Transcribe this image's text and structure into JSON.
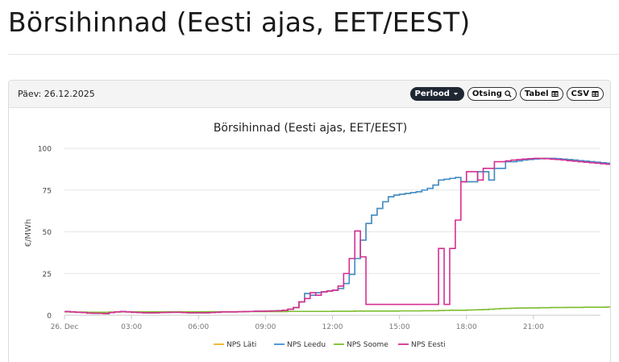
{
  "page": {
    "title": "Börsihinnad (Eesti ajas, EET/EEST)"
  },
  "panel": {
    "date_label": "Päev: 26.12.2025",
    "toolbar": {
      "period_label": "Perlood",
      "search_label": "Otsing",
      "table_label": "Tabel",
      "csv_label": "CSV"
    }
  },
  "icons": {
    "period": "chevron-down-icon",
    "search": "search-icon",
    "table": "table-icon",
    "csv": "table-icon"
  },
  "chart_data": {
    "type": "line",
    "title": "Börsihinnad (Eesti ajas, EET/EEST)",
    "xlabel": "",
    "ylabel": "€/MWh",
    "xlim": [
      0,
      24
    ],
    "ylim": [
      0,
      100
    ],
    "yticks": [
      0,
      25,
      50,
      75,
      100
    ],
    "xticks": [
      {
        "x": 0,
        "label": "26. Dec"
      },
      {
        "x": 3,
        "label": "03:00"
      },
      {
        "x": 6,
        "label": "06:00"
      },
      {
        "x": 9,
        "label": "09:00"
      },
      {
        "x": 12,
        "label": "12:00"
      },
      {
        "x": 15,
        "label": "15:00"
      },
      {
        "x": 18,
        "label": "18:00"
      },
      {
        "x": 21,
        "label": "21:00"
      }
    ],
    "grid": "horizontal",
    "legend_position": "bottom",
    "interval_hours": 0.25,
    "series": [
      {
        "name": "NPS Läti",
        "color": "#f0b323",
        "values": [
          2.2,
          2.0,
          1.8,
          1.6,
          1.3,
          1.2,
          1.1,
          1.0,
          1.6,
          2.0,
          2.2,
          2.0,
          1.8,
          1.6,
          1.5,
          1.4,
          1.5,
          1.6,
          1.7,
          1.8,
          1.8,
          1.6,
          1.5,
          1.5,
          1.5,
          1.5,
          1.6,
          1.8,
          2.0,
          2.0,
          2.0,
          2.1,
          2.2,
          2.3,
          2.4,
          2.4,
          2.5,
          2.6,
          2.7,
          3.0,
          3.6,
          4.6,
          8.0,
          13.0,
          12.0,
          13.5,
          14.0,
          14.5,
          15.0,
          16.0,
          19.0,
          24.5,
          34.0,
          45.0,
          55.0,
          60.0,
          64.0,
          68.0,
          71.0,
          72.0,
          72.5,
          73.0,
          73.5,
          74.0,
          75.0,
          76.0,
          78.0,
          81.0,
          81.5,
          82.0,
          82.5,
          80.0,
          80.0,
          80.0,
          86.0,
          86.0,
          81.0,
          88.0,
          88.0,
          92.0,
          92.0,
          92.5,
          93.0,
          93.3,
          93.6,
          93.8,
          94.0,
          94.0,
          93.8,
          93.5,
          93.3,
          93.0,
          92.6,
          92.3,
          92.0,
          91.7,
          91.4,
          91.1,
          90.8,
          90.5,
          90.2,
          89.9,
          89.6,
          89.3,
          89.0,
          88.0,
          88.0,
          84.0,
          80.0,
          87.0,
          86.0,
          82.0,
          67.0,
          54.0,
          75.0,
          66.0,
          51.0,
          25.0,
          25.0,
          14.0,
          12.0,
          6.5
        ]
      },
      {
        "name": "NPS Leedu",
        "color": "#3f8fd2",
        "values": [
          2.2,
          2.0,
          1.8,
          1.6,
          1.3,
          1.2,
          1.1,
          1.0,
          1.6,
          2.0,
          2.2,
          2.0,
          1.8,
          1.6,
          1.5,
          1.4,
          1.5,
          1.6,
          1.7,
          1.8,
          1.8,
          1.6,
          1.5,
          1.5,
          1.5,
          1.5,
          1.6,
          1.8,
          2.0,
          2.0,
          2.0,
          2.1,
          2.2,
          2.3,
          2.4,
          2.4,
          2.5,
          2.6,
          2.7,
          3.0,
          3.6,
          4.6,
          8.0,
          13.0,
          12.0,
          13.5,
          14.0,
          14.5,
          15.0,
          16.0,
          19.0,
          24.5,
          34.0,
          45.0,
          55.0,
          60.0,
          64.0,
          68.0,
          71.0,
          72.0,
          72.5,
          73.0,
          73.5,
          74.0,
          75.0,
          76.0,
          78.0,
          81.0,
          81.5,
          82.0,
          82.5,
          80.0,
          80.0,
          80.0,
          86.0,
          86.0,
          81.0,
          88.0,
          88.0,
          92.0,
          92.0,
          92.5,
          93.0,
          93.3,
          93.6,
          93.8,
          94.0,
          94.0,
          93.8,
          93.5,
          93.3,
          93.0,
          92.6,
          92.3,
          92.0,
          91.7,
          91.4,
          91.1,
          90.8,
          90.5,
          90.2,
          89.9,
          89.6,
          89.3,
          89.0,
          88.0,
          88.0,
          84.0,
          80.0,
          87.0,
          86.0,
          82.0,
          67.0,
          54.0,
          75.0,
          66.0,
          51.0,
          25.0,
          25.0,
          14.0,
          12.0,
          6.5
        ]
      },
      {
        "name": "NPS Soome",
        "color": "#7cbd2e",
        "values": [
          2.0,
          2.0,
          1.9,
          1.9,
          1.8,
          1.8,
          1.8,
          1.8,
          1.9,
          2.0,
          2.0,
          2.0,
          2.0,
          2.0,
          2.0,
          2.0,
          2.0,
          2.0,
          2.0,
          2.0,
          2.0,
          2.0,
          2.0,
          2.0,
          2.1,
          2.1,
          2.1,
          2.1,
          2.1,
          2.1,
          2.1,
          2.1,
          2.2,
          2.2,
          2.2,
          2.2,
          2.2,
          2.2,
          2.2,
          2.2,
          2.3,
          2.3,
          2.3,
          2.3,
          2.3,
          2.3,
          2.3,
          2.3,
          2.4,
          2.4,
          2.4,
          2.4,
          2.5,
          2.5,
          2.5,
          2.5,
          2.5,
          2.5,
          2.5,
          2.5,
          2.6,
          2.6,
          2.6,
          2.6,
          2.7,
          2.7,
          2.7,
          2.8,
          2.9,
          3.0,
          3.0,
          3.0,
          3.1,
          3.2,
          3.3,
          3.4,
          3.6,
          3.8,
          4.0,
          4.1,
          4.2,
          4.3,
          4.3,
          4.4,
          4.4,
          4.5,
          4.5,
          4.6,
          4.6,
          4.6,
          4.7,
          4.7,
          4.7,
          4.8,
          4.8,
          4.8,
          4.8,
          4.9,
          4.9,
          4.9,
          4.9,
          5.0,
          5.0,
          5.0,
          5.0,
          5.0,
          5.0,
          4.9,
          4.9,
          4.8,
          4.6,
          4.4,
          4.3,
          4.2,
          4.1,
          4.0,
          3.9,
          3.8,
          3.7,
          3.6,
          3.4,
          3.2,
          3.2,
          3.0,
          2.6
        ]
      },
      {
        "name": "NPS Eesti",
        "color": "#d62f92",
        "values": [
          2.2,
          2.0,
          1.8,
          1.6,
          1.3,
          1.2,
          1.1,
          1.0,
          1.6,
          2.0,
          2.2,
          2.0,
          1.8,
          1.6,
          1.5,
          1.4,
          1.5,
          1.6,
          1.7,
          1.8,
          1.8,
          1.6,
          1.5,
          1.5,
          1.5,
          1.5,
          1.6,
          1.8,
          2.0,
          2.0,
          2.0,
          2.1,
          2.2,
          2.3,
          2.4,
          2.4,
          2.5,
          2.6,
          2.7,
          3.0,
          3.6,
          4.6,
          8.0,
          10.0,
          13.5,
          12.0,
          14.0,
          14.5,
          15.0,
          17.5,
          25.0,
          34.0,
          50.5,
          35.0,
          6.5,
          6.5,
          6.5,
          6.5,
          6.5,
          6.5,
          6.5,
          6.5,
          6.5,
          6.5,
          6.5,
          6.5,
          6.5,
          40.0,
          6.5,
          40.0,
          57.0,
          80.0,
          86.0,
          86.0,
          81.0,
          88.0,
          88.0,
          92.0,
          92.0,
          92.5,
          93.0,
          93.3,
          93.6,
          93.8,
          94.0,
          94.0,
          93.8,
          93.5,
          93.3,
          93.0,
          92.6,
          92.3,
          92.0,
          91.7,
          91.4,
          91.1,
          90.8,
          90.5,
          90.2,
          89.9,
          89.6,
          89.3,
          89.0,
          88.0,
          88.0,
          84.0,
          80.0,
          87.0,
          86.0,
          82.0,
          67.0,
          54.0,
          75.0,
          66.0,
          51.0,
          25.0,
          25.0,
          14.0,
          12.0,
          6.5,
          5.5,
          4.5
        ]
      }
    ]
  }
}
